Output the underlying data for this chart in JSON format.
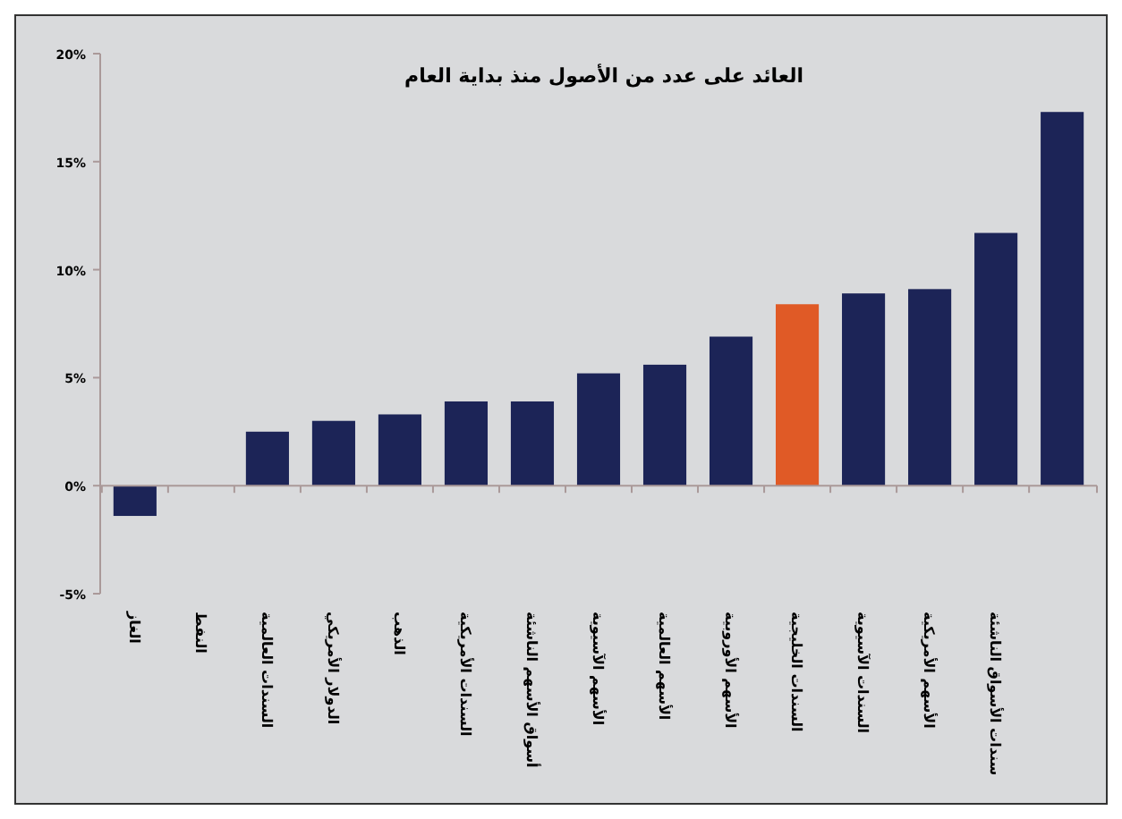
{
  "chart_data": {
    "type": "bar",
    "title": "العائد على عدد من الأصول منذ بداية العام",
    "categories": [
      "الغاز",
      "النفط",
      "السندات العالمية",
      "الدولار الأمريكي",
      "الذهب",
      "السندات الأمريكية",
      "أسواق الأسهم الناشئة",
      "الأسهم الآسيوية",
      "الأسهم العالمية",
      "الأسهم الأوروبية",
      "السندات الخليجية",
      "السندات الآسيوية",
      "الأسهم الأمريكية",
      "سندات الأسواق الناشئة",
      null
    ],
    "values": [
      -1.4,
      0,
      2.5,
      3.0,
      3.3,
      3.9,
      3.9,
      5.2,
      5.6,
      6.9,
      8.4,
      8.9,
      9.1,
      11.7,
      17.3
    ],
    "colors": [
      "#1c2457",
      "#1c2457",
      "#1c2457",
      "#1c2457",
      "#1c2457",
      "#1c2457",
      "#1c2457",
      "#1c2457",
      "#1c2457",
      "#1c2457",
      "#e05a26",
      "#1c2457",
      "#1c2457",
      "#1c2457",
      "#1c2457"
    ],
    "ylim": [
      -5,
      20
    ],
    "yticks": [
      {
        "value": -5,
        "label": "-5%"
      },
      {
        "value": 0,
        "label": "0%"
      },
      {
        "value": 5,
        "label": "5%"
      },
      {
        "value": 10,
        "label": "10%"
      },
      {
        "value": 15,
        "label": "15%"
      },
      {
        "value": 20,
        "label": "20%"
      }
    ],
    "xlabel": null
  }
}
